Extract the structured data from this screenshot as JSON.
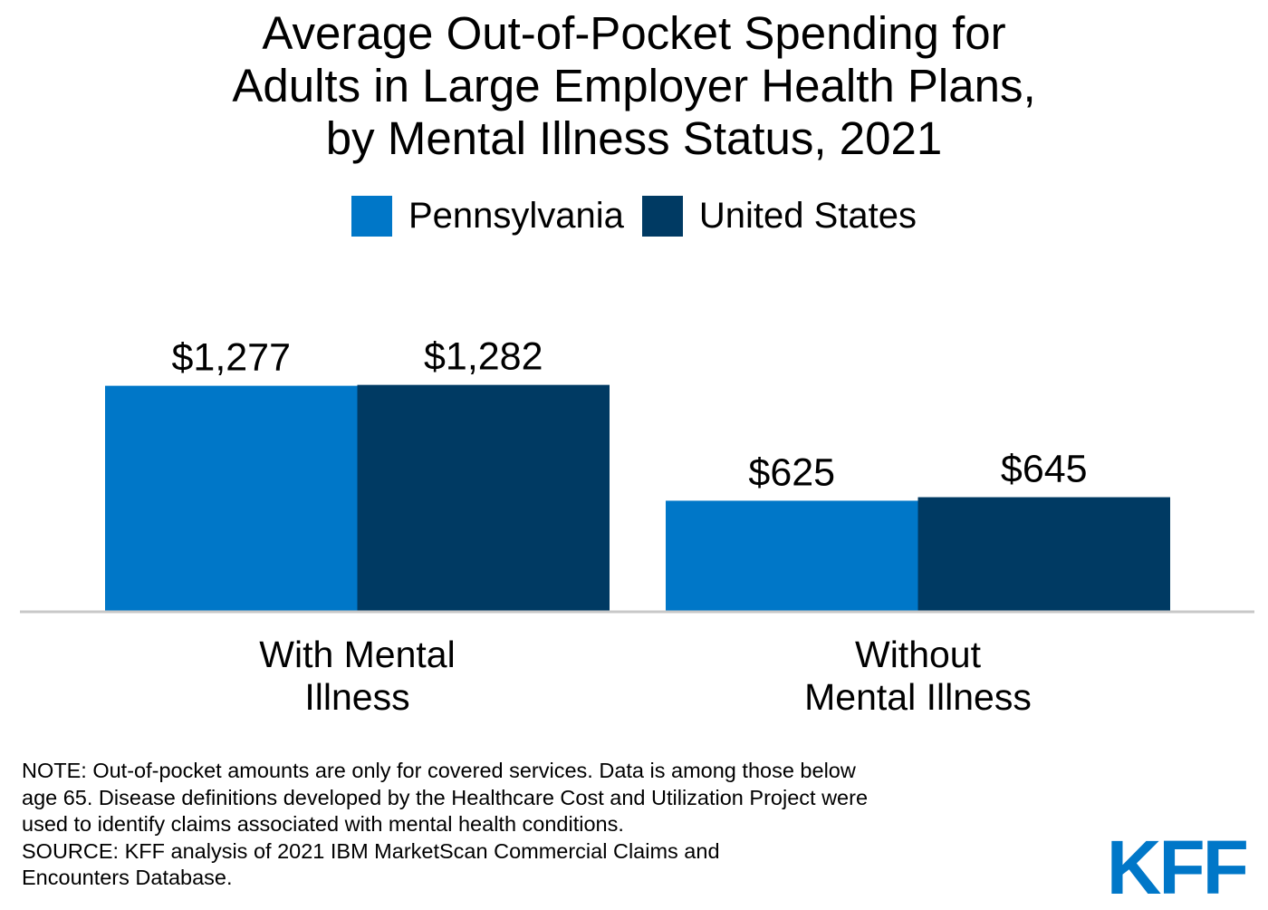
{
  "title_lines": [
    "Average Out-of-Pocket Spending for",
    "Adults in Large Employer Health Plans,",
    "by Mental Illness Status, 2021"
  ],
  "colors": {
    "pennsylvania": "#0077c8",
    "united_states": "#003a63",
    "baseline": "#c8c8c8",
    "logo": "#0077c8"
  },
  "chart_data": {
    "type": "bar",
    "title": "Average Out-of-Pocket Spending for Adults in Large Employer Health Plans, by Mental Illness Status, 2021",
    "categories": [
      [
        "With Mental",
        "Illness"
      ],
      [
        "Without",
        "Mental Illness"
      ]
    ],
    "series": [
      {
        "name": "Pennsylvania",
        "values": [
          1277,
          625
        ],
        "labels": [
          "$1,277",
          "$625"
        ]
      },
      {
        "name": "United States",
        "values": [
          1282,
          645
        ],
        "labels": [
          "$1,282",
          "$645"
        ]
      }
    ],
    "legend_position": "top-center",
    "grid": false,
    "xlabel": "",
    "ylabel": ""
  },
  "notes": [
    "NOTE: Out-of-pocket amounts are only for covered services. Data is among those below",
    "age 65. Disease definitions developed by the Healthcare Cost and Utilization Project were",
    "used to identify claims associated with mental health conditions.",
    "SOURCE: KFF analysis of 2021 IBM MarketScan Commercial Claims and",
    "Encounters Database."
  ],
  "logo_text": "KFF"
}
